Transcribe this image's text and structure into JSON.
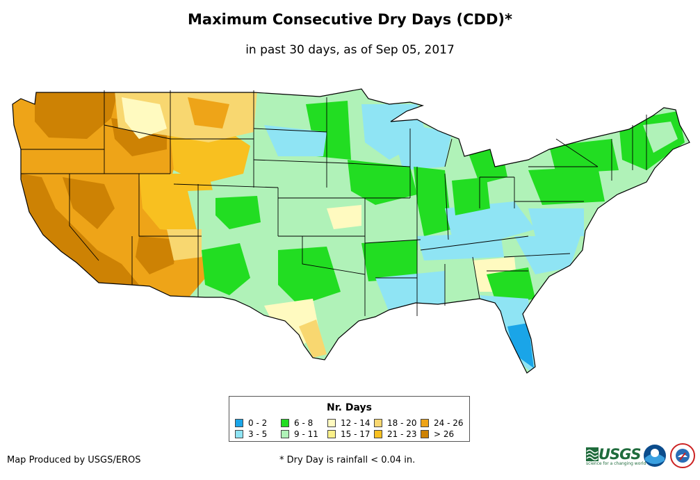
{
  "title": "Maximum Consecutive Dry Days (CDD)*",
  "subtitle": "in past 30 days, as of Sep 05, 2017",
  "legend": {
    "title": "Nr. Days",
    "items": [
      {
        "label": "0 - 2",
        "color": "#1aa5e8"
      },
      {
        "label": "3 - 5",
        "color": "#8fe4f4"
      },
      {
        "label": "6 - 8",
        "color": "#22dd22"
      },
      {
        "label": "9 - 11",
        "color": "#b0f2b8"
      },
      {
        "label": "12 - 14",
        "color": "#fffac0"
      },
      {
        "label": "15 - 17",
        "color": "#faf08a"
      },
      {
        "label": "18 - 20",
        "color": "#f8d770"
      },
      {
        "label": "21 - 23",
        "color": "#f8c020"
      },
      {
        "label": "24 - 26",
        "color": "#eea418"
      },
      {
        "label": "> 26",
        "color": "#cd8204"
      }
    ]
  },
  "footer": {
    "credit": "Map Produced by USGS/EROS",
    "note": "* Dry Day is rainfall < 0.04 in."
  },
  "logos": {
    "usgs": "USGS",
    "usgs_tagline": "science for a changing world",
    "noaa_icon": "noaa-logo-icon",
    "nws_icon": "nws-logo-icon"
  }
}
